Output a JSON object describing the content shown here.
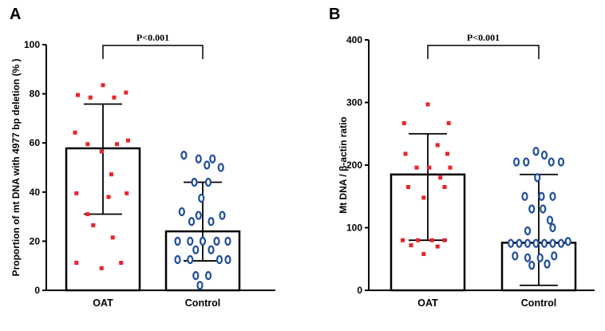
{
  "chart_data": [
    {
      "panel": "A",
      "type": "bar",
      "ylabel": "Proportion of mt DNA with 4977 bp deletion (% )",
      "ylim": [
        0,
        100
      ],
      "yticks": [
        0,
        20,
        40,
        60,
        80,
        100
      ],
      "categories": [
        "OAT",
        "Control"
      ],
      "values": [
        57.8,
        24
      ],
      "error": [
        {
          "low": 31,
          "high": 75.8
        },
        {
          "low": 12,
          "high": 44
        }
      ],
      "significance": "P<0.001",
      "colors": {
        "OAT": "#e8242a",
        "Control": "#1f4e9a"
      },
      "points": {
        "OAT": [
          {
            "dx": -0.36,
            "y": 79.5
          },
          {
            "dx": 0.0,
            "y": 83.5
          },
          {
            "dx": 0.33,
            "y": 80.5
          },
          {
            "dx": -0.18,
            "y": 78.5
          },
          {
            "dx": 0.16,
            "y": 78.5
          },
          {
            "dx": -0.4,
            "y": 64.2
          },
          {
            "dx": 0.36,
            "y": 61
          },
          {
            "dx": -0.22,
            "y": 59.5
          },
          {
            "dx": 0.2,
            "y": 59.5
          },
          {
            "dx": -0.02,
            "y": 56.5
          },
          {
            "dx": 0.12,
            "y": 47.2
          },
          {
            "dx": -0.38,
            "y": 39.5
          },
          {
            "dx": 0.34,
            "y": 39.5
          },
          {
            "dx": 0.08,
            "y": 38
          },
          {
            "dx": -0.22,
            "y": 31
          },
          {
            "dx": -0.14,
            "y": 26.5
          },
          {
            "dx": 0.14,
            "y": 21.5
          },
          {
            "dx": -0.38,
            "y": 11.2
          },
          {
            "dx": 0.26,
            "y": 11.2
          },
          {
            "dx": -0.02,
            "y": 9
          }
        ],
        "Control": [
          {
            "dx": -0.27,
            "y": 55
          },
          {
            "dx": -0.06,
            "y": 53.5
          },
          {
            "dx": 0.14,
            "y": 53.5
          },
          {
            "dx": 0.26,
            "y": 50
          },
          {
            "dx": 0.06,
            "y": 51
          },
          {
            "dx": -0.12,
            "y": 44
          },
          {
            "dx": 0.08,
            "y": 44
          },
          {
            "dx": -0.02,
            "y": 37.5
          },
          {
            "dx": -0.3,
            "y": 32
          },
          {
            "dx": -0.06,
            "y": 30.5
          },
          {
            "dx": 0.28,
            "y": 30.5
          },
          {
            "dx": -0.16,
            "y": 28
          },
          {
            "dx": 0.12,
            "y": 28
          },
          {
            "dx": -0.36,
            "y": 20
          },
          {
            "dx": -0.18,
            "y": 20
          },
          {
            "dx": 0.0,
            "y": 20
          },
          {
            "dx": 0.2,
            "y": 20
          },
          {
            "dx": 0.36,
            "y": 20
          },
          {
            "dx": -0.1,
            "y": 16.5
          },
          {
            "dx": 0.12,
            "y": 16.5
          },
          {
            "dx": -0.36,
            "y": 12.5
          },
          {
            "dx": -0.18,
            "y": 12.5
          },
          {
            "dx": 0.24,
            "y": 12.5
          },
          {
            "dx": 0.36,
            "y": 12.5
          },
          {
            "dx": -0.1,
            "y": 6
          },
          {
            "dx": 0.08,
            "y": 6
          },
          {
            "dx": -0.04,
            "y": 2
          }
        ]
      }
    },
    {
      "panel": "B",
      "type": "bar",
      "ylabel": "Mt DNA / β-actin ratio",
      "ylim": [
        0,
        400
      ],
      "yticks": [
        0,
        100,
        200,
        300,
        400
      ],
      "categories": [
        "OAT",
        "Control"
      ],
      "values": [
        185,
        76
      ],
      "error": [
        {
          "low": 80,
          "high": 250
        },
        {
          "low": 8,
          "high": 185
        }
      ],
      "significance": "P<0.001",
      "colors": {
        "OAT": "#e8242a",
        "Control": "#1f4e9a"
      },
      "points": {
        "OAT": [
          {
            "dx": 0.0,
            "y": 297
          },
          {
            "dx": -0.34,
            "y": 267
          },
          {
            "dx": 0.3,
            "y": 267
          },
          {
            "dx": 0.14,
            "y": 232
          },
          {
            "dx": -0.32,
            "y": 218
          },
          {
            "dx": 0.28,
            "y": 218
          },
          {
            "dx": -0.16,
            "y": 196
          },
          {
            "dx": 0.02,
            "y": 196
          },
          {
            "dx": 0.32,
            "y": 196
          },
          {
            "dx": 0.18,
            "y": 180
          },
          {
            "dx": -0.28,
            "y": 165
          },
          {
            "dx": 0.24,
            "y": 165
          },
          {
            "dx": -0.06,
            "y": 148
          },
          {
            "dx": -0.36,
            "y": 80
          },
          {
            "dx": -0.14,
            "y": 80
          },
          {
            "dx": 0.06,
            "y": 80
          },
          {
            "dx": 0.24,
            "y": 80
          },
          {
            "dx": -0.24,
            "y": 72
          },
          {
            "dx": 0.14,
            "y": 70
          },
          {
            "dx": -0.06,
            "y": 58
          }
        ],
        "Control": [
          {
            "dx": -0.04,
            "y": 222
          },
          {
            "dx": 0.08,
            "y": 216
          },
          {
            "dx": -0.32,
            "y": 205
          },
          {
            "dx": -0.18,
            "y": 205
          },
          {
            "dx": 0.18,
            "y": 205
          },
          {
            "dx": 0.32,
            "y": 205
          },
          {
            "dx": -0.02,
            "y": 180
          },
          {
            "dx": -0.2,
            "y": 150
          },
          {
            "dx": 0.04,
            "y": 150
          },
          {
            "dx": 0.2,
            "y": 150
          },
          {
            "dx": -0.1,
            "y": 130
          },
          {
            "dx": 0.06,
            "y": 130
          },
          {
            "dx": 0.16,
            "y": 112
          },
          {
            "dx": -0.16,
            "y": 95
          },
          {
            "dx": 0.2,
            "y": 100
          },
          {
            "dx": -0.4,
            "y": 75
          },
          {
            "dx": -0.28,
            "y": 75
          },
          {
            "dx": -0.16,
            "y": 75
          },
          {
            "dx": -0.04,
            "y": 75
          },
          {
            "dx": 0.08,
            "y": 75
          },
          {
            "dx": 0.2,
            "y": 75
          },
          {
            "dx": 0.32,
            "y": 75
          },
          {
            "dx": 0.42,
            "y": 78
          },
          {
            "dx": -0.34,
            "y": 55
          },
          {
            "dx": -0.16,
            "y": 52
          },
          {
            "dx": 0.02,
            "y": 52
          },
          {
            "dx": 0.22,
            "y": 55
          },
          {
            "dx": -0.1,
            "y": 40
          },
          {
            "dx": 0.12,
            "y": 42
          }
        ]
      }
    }
  ]
}
